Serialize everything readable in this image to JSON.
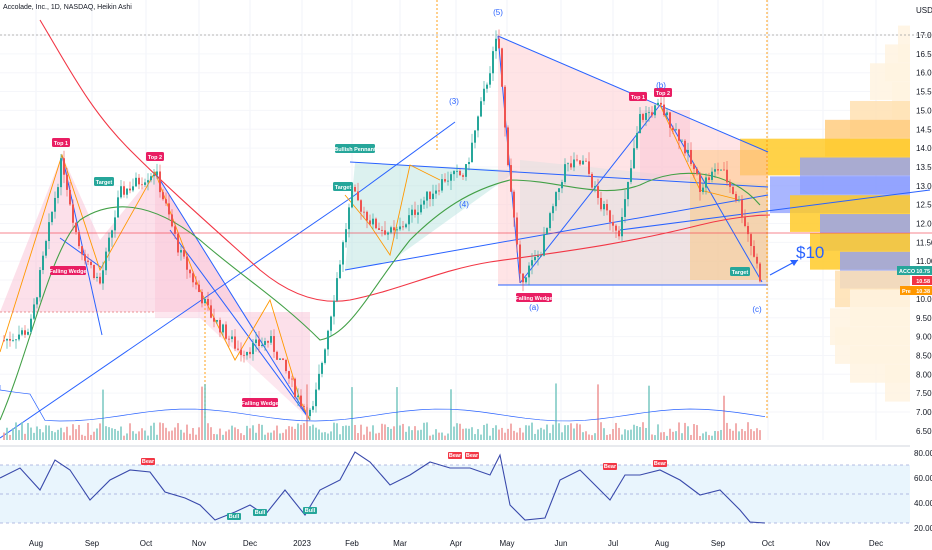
{
  "header": {
    "symbol_line": "Accolade, Inc., 1D, NASDAQ, Heikin Ashi",
    "currency": "USD"
  },
  "price_axis": {
    "labels": [
      "17.00",
      "16.50",
      "16.00",
      "15.50",
      "15.00",
      "14.50",
      "14.00",
      "13.50",
      "13.00",
      "12.50",
      "12.00",
      "11.50",
      "11.00",
      "10.50",
      "10.00",
      "9.50",
      "9.00",
      "8.50",
      "8.00",
      "7.50",
      "7.00",
      "6.50"
    ]
  },
  "rsi_axis": {
    "labels": [
      "80.00",
      "60.00",
      "40.00",
      "20.00"
    ]
  },
  "time_axis": {
    "labels": [
      "Aug",
      "Sep",
      "Oct",
      "Nov",
      "Dec",
      "2023",
      "Feb",
      "Mar",
      "Apr",
      "May",
      "Jun",
      "Jul",
      "Aug",
      "Sep",
      "Oct",
      "Nov",
      "Dec"
    ]
  },
  "price_tags": {
    "last": {
      "label": "ACCO",
      "value": "10.75",
      "color": "#26a69a"
    },
    "tag2": {
      "value": "10.58",
      "color": "#f23645"
    },
    "tag3": {
      "label": "Pre",
      "value": "10.38",
      "color": "#ff9800"
    }
  },
  "annotations": {
    "top1_left": "Top 1",
    "top2_left": "Top 2",
    "target_left": "Target",
    "falling_wedge_1": "Falling Wedge",
    "falling_wedge_2": "Falling Wedge",
    "bullish_pennant": "Bullish Pennant",
    "target_pennant": "Target",
    "falling_wedge_3": "Falling Wedge",
    "top1_right": "Top 1",
    "top2_right": "Top 2",
    "target_right": "Target",
    "price_target": "$10"
  },
  "waves": {
    "w3": "(3)",
    "w4": "(4)",
    "w5": "(5)",
    "wa": "(a)",
    "wb": "(b)",
    "wc": "(c)"
  },
  "rsi_markers": {
    "bear1": "Bear",
    "bear2": "Bear",
    "bear3": "Bear",
    "bear4": "Bear",
    "bear5": "Bear",
    "bull1": "Bull",
    "bull2": "Bull",
    "bull3": "Bull"
  },
  "colors": {
    "up": "#26a69a",
    "down": "#ef5350",
    "ma_red": "#f23645",
    "ma_green": "#4caf50",
    "wedge": "#2962ff",
    "orange": "#ff9800"
  },
  "chart_data": {
    "type": "candlestick",
    "x_labels": [
      "Aug",
      "Sep",
      "Oct",
      "Nov",
      "Dec",
      "2023",
      "Feb",
      "Mar",
      "Apr",
      "May",
      "Jun",
      "Jul",
      "Aug",
      "Sep",
      "Oct",
      "Nov",
      "Dec"
    ],
    "ylim": [
      6.25,
      17.25
    ],
    "price_path_anchors": [
      {
        "month": "Aug",
        "price": 8.9
      },
      {
        "month": "Aug",
        "price": 13.7
      },
      {
        "month": "Sep",
        "price": 10.4
      },
      {
        "month": "Oct",
        "price": 13.4
      },
      {
        "month": "Nov",
        "price": 9.5
      },
      {
        "month": "Dec",
        "price": 8.2
      },
      {
        "month": "2023",
        "price": 6.9
      },
      {
        "month": "Feb",
        "price": 12.8
      },
      {
        "month": "Mar",
        "price": 11.7
      },
      {
        "month": "Apr",
        "price": 13.3
      },
      {
        "month": "May",
        "price": 17.0
      },
      {
        "month": "May",
        "price": 10.5
      },
      {
        "month": "Jun",
        "price": 13.6
      },
      {
        "month": "Jul",
        "price": 11.8
      },
      {
        "month": "Aug",
        "price": 15.1
      },
      {
        "month": "Sep",
        "price": 13.3
      },
      {
        "month": "Oct",
        "price": 10.4
      }
    ],
    "last_price": 10.75,
    "rsi": {
      "range": [
        10,
        85
      ],
      "overbought": 70,
      "oversold": 30,
      "last": 25
    }
  }
}
